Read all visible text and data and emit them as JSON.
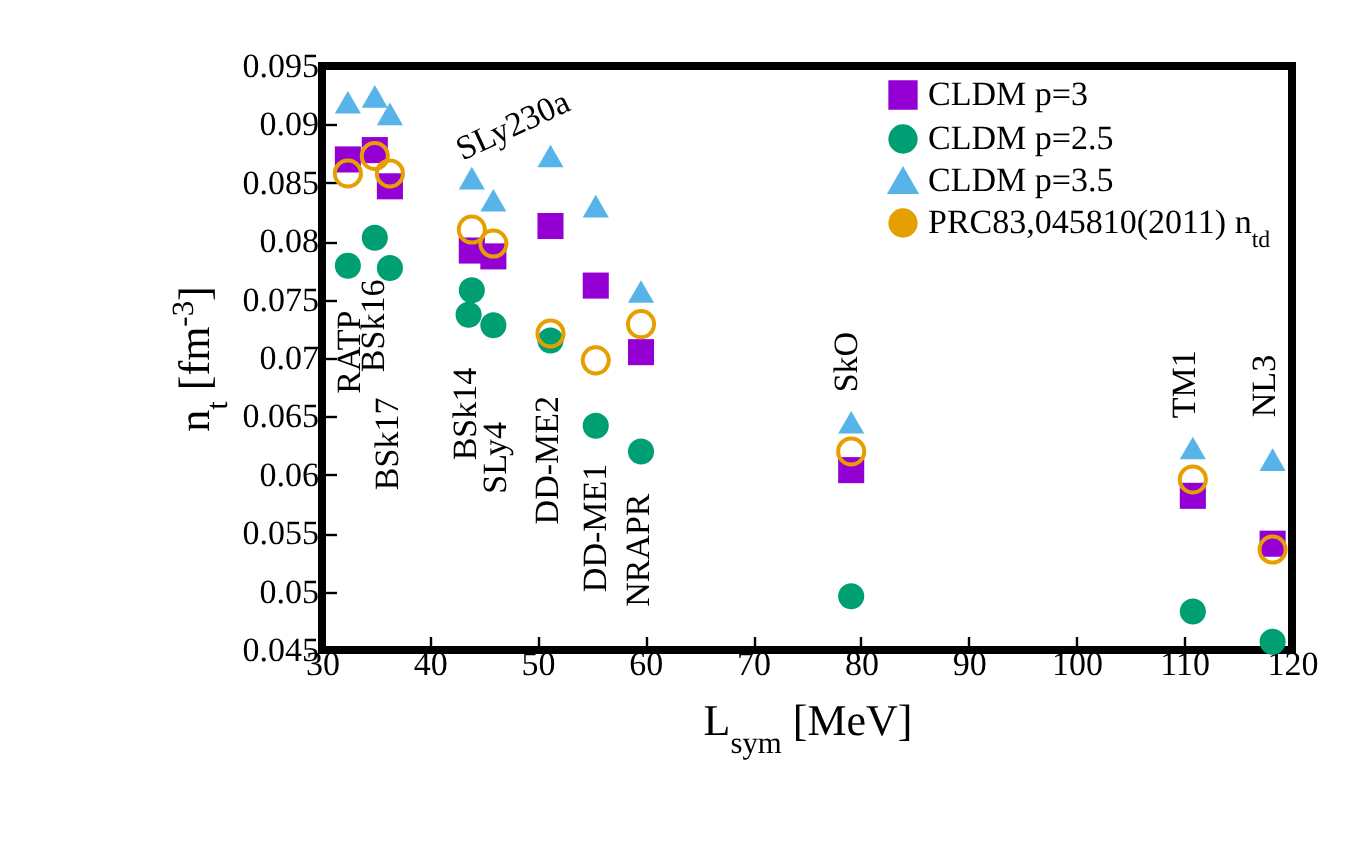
{
  "chart_data": {
    "type": "scatter",
    "xlabel": "L$_{sym}$ [MeV]",
    "ylabel": "n$_{t}$ [fm$^{-3}$]",
    "xlim": [
      30,
      120
    ],
    "xticks": [
      30,
      40,
      50,
      60,
      70,
      80,
      90,
      100,
      110,
      120
    ],
    "ylim": [
      0.045,
      0.095
    ],
    "yticks": [
      0.045,
      0.05,
      0.055,
      0.06,
      0.065,
      0.07,
      0.075,
      0.08,
      0.085,
      0.09,
      0.095
    ],
    "grid": false,
    "legend": "top right",
    "series": [
      {
        "name": "CLDM p=3",
        "color": "#9400d3",
        "marker": "square",
        "x": [
          32.4,
          34.9,
          36.3,
          43.9,
          45.9,
          51.2,
          55.4,
          59.6,
          79.1,
          110.8,
          118.2
        ],
        "values": [
          0.087,
          0.0878,
          0.0847,
          0.0792,
          0.0787,
          0.0813,
          0.0762,
          0.0705,
          0.0604,
          0.0582,
          0.0541
        ]
      },
      {
        "name": "CLDM p=2.5",
        "color": "#009e73",
        "marker": "circle",
        "x": [
          32.4,
          34.9,
          36.3,
          43.9,
          43.6,
          45.9,
          51.2,
          55.4,
          59.6,
          79.1,
          110.8,
          118.2
        ],
        "values": [
          0.0779,
          0.0803,
          0.0777,
          0.0758,
          0.0737,
          0.0728,
          0.0715,
          0.0642,
          0.062,
          0.0496,
          0.0483,
          0.0457
        ]
      },
      {
        "name": "CLDM p=3.5",
        "color": "#56b4e9",
        "marker": "triangle",
        "x": [
          32.4,
          34.9,
          36.3,
          43.9,
          45.9,
          51.2,
          55.4,
          59.6,
          79.1,
          110.8,
          118.2
        ],
        "values": [
          0.0919,
          0.0924,
          0.0909,
          0.0854,
          0.0835,
          0.0873,
          0.083,
          0.0757,
          0.0645,
          0.0623,
          0.0613
        ]
      },
      {
        "name": "PRC83,045810(2011) n$_{td}$",
        "color": "#e69f00",
        "marker": "circle",
        "x": [
          32.4,
          34.9,
          36.3,
          43.9,
          45.9,
          51.2,
          55.4,
          59.6,
          79.1,
          110.8,
          118.2
        ],
        "values": [
          0.0858,
          0.0873,
          0.0858,
          0.081,
          0.0798,
          0.0721,
          0.0698,
          0.0729,
          0.062,
          0.0596,
          0.0536
        ]
      }
    ],
    "annotations": [
      "RATP",
      "BSk16",
      "BSk17",
      "BSk14",
      "SLy4",
      "SLy230a",
      "DD-ME2",
      "DD-ME1",
      "NRAPR",
      "SkO",
      "TM1",
      "NL3"
    ]
  }
}
